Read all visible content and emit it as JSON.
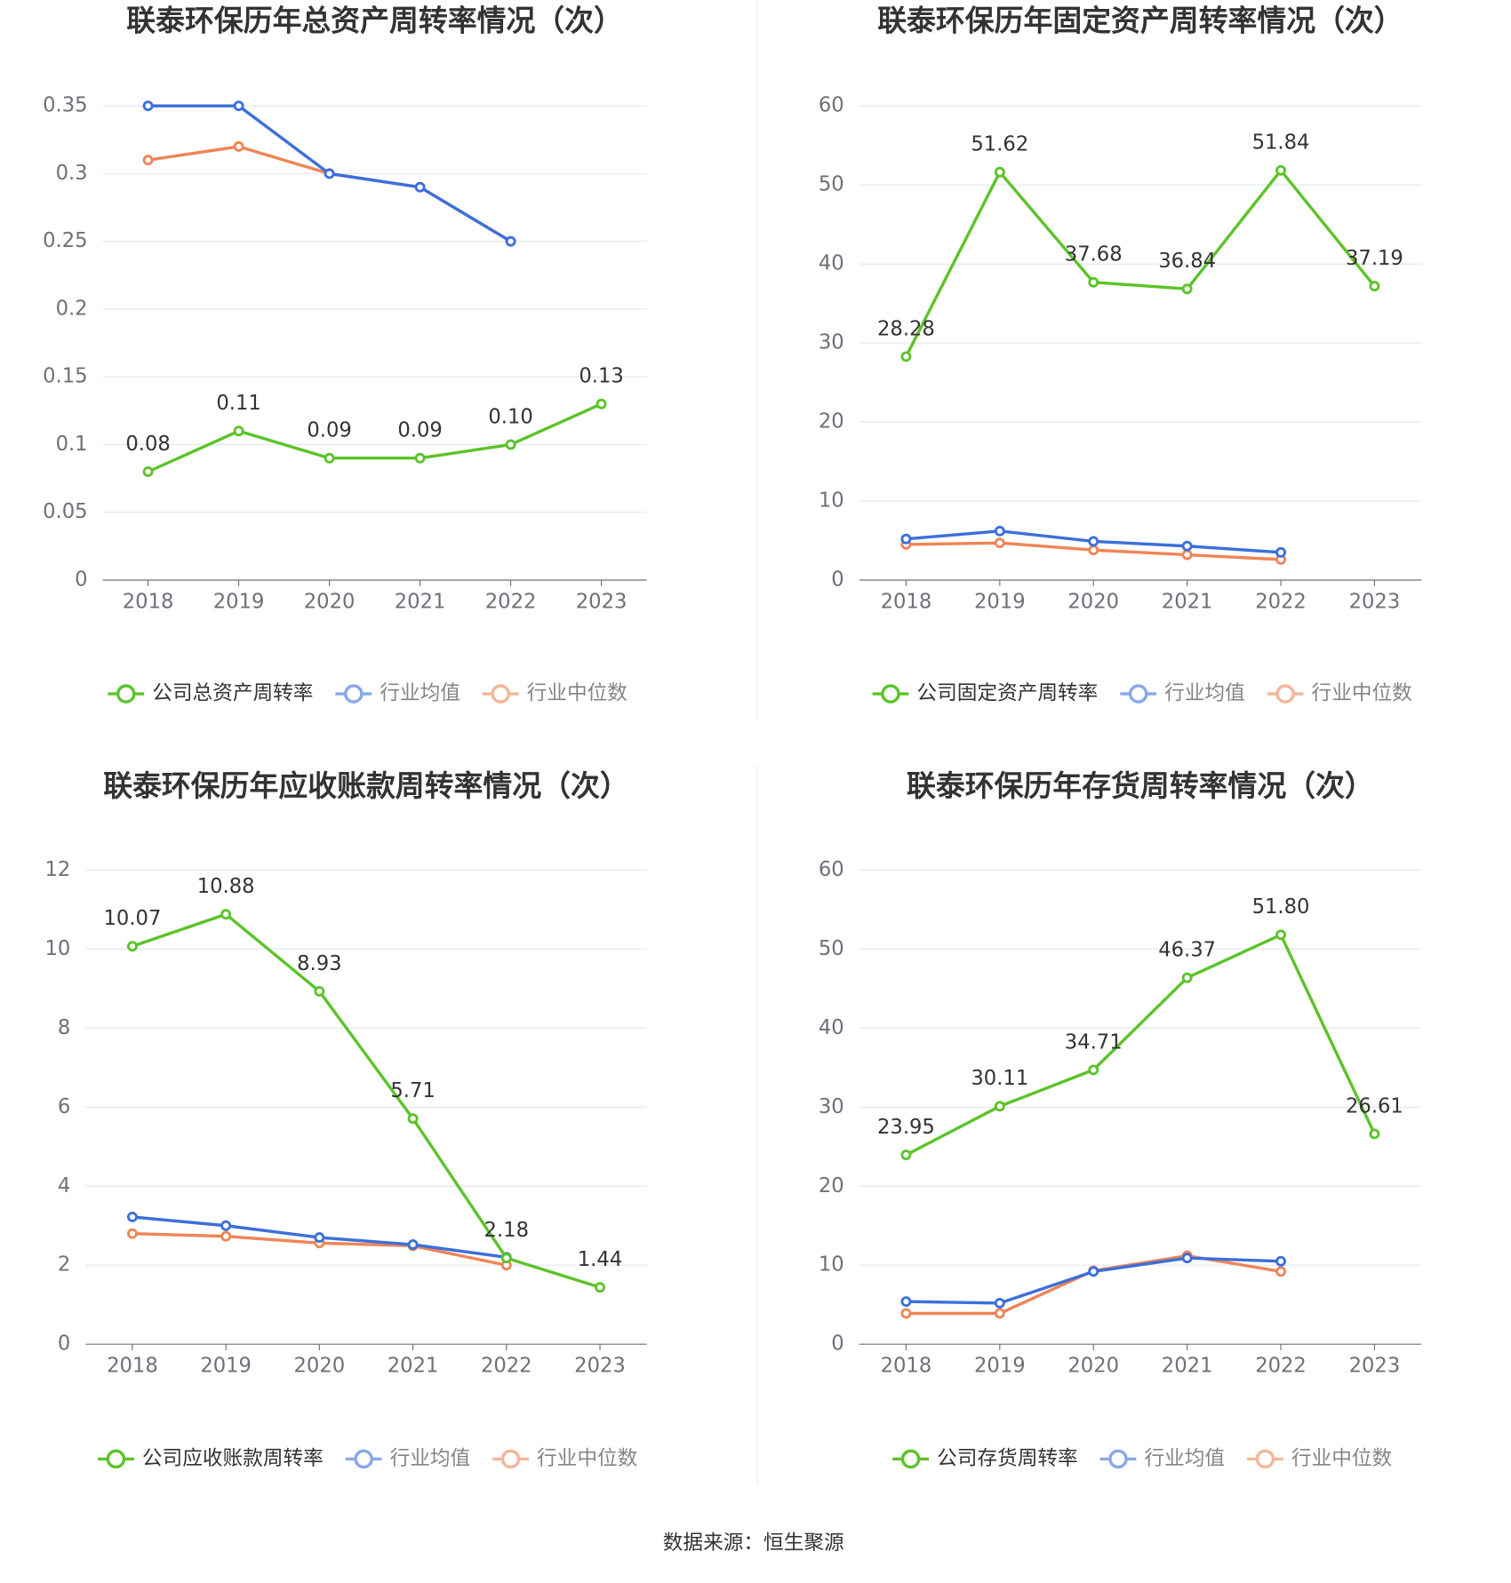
{
  "chart_data": [
    {
      "type": "line",
      "title": "联泰环保历年总资产周转率情况（次）",
      "categories": [
        "2018",
        "2019",
        "2020",
        "2021",
        "2022",
        "2023"
      ],
      "ylim": [
        0,
        0.35
      ],
      "yticks": [
        0,
        0.05,
        0.1,
        0.15,
        0.2,
        0.25,
        0.3,
        0.35
      ],
      "grid": true,
      "series": [
        {
          "name": "公司总资产周转率",
          "color": "#5cc32a",
          "values": [
            0.08,
            0.11,
            0.09,
            0.09,
            0.1,
            0.13
          ],
          "value_labels": [
            "0.08",
            "0.11",
            "0.09",
            "0.09",
            "0.10",
            "0.13"
          ]
        },
        {
          "name": "行业均值",
          "color": "#3b6fdc",
          "values": [
            0.35,
            0.35,
            0.3,
            0.29,
            0.25,
            null
          ]
        },
        {
          "name": "行业中位数",
          "color": "#f08456",
          "values": [
            0.31,
            0.32,
            0.3,
            0.29,
            0.25,
            null
          ]
        }
      ]
    },
    {
      "type": "line",
      "title": "联泰环保历年固定资产周转率情况（次）",
      "categories": [
        "2018",
        "2019",
        "2020",
        "2021",
        "2022",
        "2023"
      ],
      "ylim": [
        0,
        60
      ],
      "yticks": [
        0,
        10,
        20,
        30,
        40,
        50,
        60
      ],
      "grid": true,
      "series": [
        {
          "name": "公司固定资产周转率",
          "color": "#5cc32a",
          "values": [
            28.28,
            51.62,
            37.68,
            36.84,
            51.84,
            37.19
          ]
        },
        {
          "name": "行业均值",
          "color": "#3b6fdc",
          "values": [
            5.2,
            6.2,
            4.9,
            4.3,
            3.5,
            null
          ]
        },
        {
          "name": "行业中位数",
          "color": "#f08456",
          "values": [
            4.5,
            4.7,
            3.8,
            3.2,
            2.6,
            null
          ]
        }
      ]
    },
    {
      "type": "line",
      "title": "联泰环保历年应收账款周转率情况（次）",
      "categories": [
        "2018",
        "2019",
        "2020",
        "2021",
        "2022",
        "2023"
      ],
      "ylim": [
        0,
        12
      ],
      "yticks": [
        0,
        2,
        4,
        6,
        8,
        10,
        12
      ],
      "grid": true,
      "series": [
        {
          "name": "公司应收账款周转率",
          "color": "#5cc32a",
          "values": [
            10.07,
            10.88,
            8.93,
            5.71,
            2.18,
            1.44
          ]
        },
        {
          "name": "行业均值",
          "color": "#3b6fdc",
          "values": [
            3.22,
            3.0,
            2.7,
            2.52,
            2.2,
            null
          ]
        },
        {
          "name": "行业中位数",
          "color": "#f08456",
          "values": [
            2.8,
            2.73,
            2.56,
            2.49,
            2.0,
            null
          ]
        }
      ]
    },
    {
      "type": "line",
      "title": "联泰环保历年存货周转率情况（次）",
      "categories": [
        "2018",
        "2019",
        "2020",
        "2021",
        "2022",
        "2023"
      ],
      "ylim": [
        0,
        60
      ],
      "yticks": [
        0,
        10,
        20,
        30,
        40,
        50,
        60
      ],
      "grid": true,
      "series": [
        {
          "name": "公司存货周转率",
          "color": "#5cc32a",
          "values": [
            23.95,
            30.11,
            34.71,
            46.37,
            51.8,
            26.61
          ],
          "value_labels": [
            "23.95",
            "30.11",
            "34.71",
            "46.37",
            "51.80",
            "26.61"
          ]
        },
        {
          "name": "行业均值",
          "color": "#3b6fdc",
          "values": [
            5.4,
            5.2,
            9.2,
            10.9,
            10.5,
            null
          ]
        },
        {
          "name": "行业中位数",
          "color": "#f08456",
          "values": [
            3.9,
            3.9,
            9.3,
            11.2,
            9.2,
            null
          ]
        }
      ]
    }
  ],
  "source": "数据来源：恒生聚源"
}
